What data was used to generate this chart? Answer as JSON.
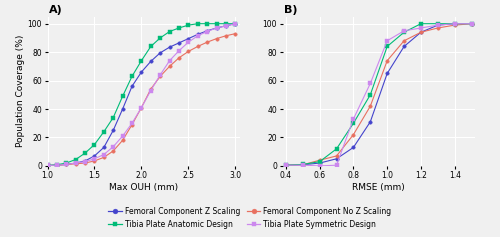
{
  "panel_A": {
    "title": "A)",
    "xlabel": "Max OUH (mm)",
    "ylabel": "Population Coverage (%)",
    "xlim": [
      1.0,
      3.05
    ],
    "ylim": [
      0,
      105
    ],
    "xticks": [
      1.0,
      1.5,
      2.0,
      2.5,
      3.0
    ],
    "yticks": [
      0,
      20,
      40,
      60,
      80,
      100
    ],
    "femoral_z": {
      "x": [
        1.0,
        1.1,
        1.2,
        1.3,
        1.4,
        1.5,
        1.6,
        1.7,
        1.8,
        1.9,
        2.0,
        2.1,
        2.2,
        2.3,
        2.4,
        2.5,
        2.6,
        2.7,
        2.8,
        2.9,
        3.0
      ],
      "y": [
        0.3,
        0.5,
        1.0,
        2.0,
        3.5,
        7.0,
        13.0,
        25.0,
        40.0,
        56.0,
        66.0,
        73.5,
        79.5,
        83.5,
        86.5,
        89.5,
        92.5,
        95.0,
        97.0,
        98.5,
        100.0
      ],
      "color": "#4444cc",
      "marker": "o",
      "label": "Femoral Component Z Scaling"
    },
    "femoral_noz": {
      "x": [
        1.0,
        1.1,
        1.2,
        1.3,
        1.4,
        1.5,
        1.6,
        1.7,
        1.8,
        1.9,
        2.0,
        2.1,
        2.2,
        2.3,
        2.4,
        2.5,
        2.6,
        2.7,
        2.8,
        2.9,
        3.0
      ],
      "y": [
        0.3,
        0.5,
        1.0,
        1.5,
        2.0,
        3.5,
        6.0,
        10.5,
        18.0,
        29.0,
        41.0,
        54.0,
        63.0,
        70.0,
        76.0,
        80.5,
        84.0,
        87.0,
        89.5,
        91.5,
        93.0
      ],
      "color": "#e87060",
      "marker": "o",
      "label": "Femoral Component No Z Scaling"
    },
    "tibia_anatomic": {
      "x": [
        1.0,
        1.1,
        1.2,
        1.3,
        1.4,
        1.5,
        1.6,
        1.7,
        1.8,
        1.9,
        2.0,
        2.1,
        2.2,
        2.3,
        2.4,
        2.5,
        2.6,
        2.7,
        2.8,
        2.9,
        3.0
      ],
      "y": [
        0.3,
        0.8,
        2.0,
        4.5,
        9.0,
        15.0,
        24.0,
        34.0,
        49.0,
        63.0,
        74.0,
        84.0,
        90.0,
        94.5,
        97.0,
        99.0,
        100.0,
        100.0,
        100.0,
        100.0,
        100.0
      ],
      "color": "#00bb77",
      "marker": "s",
      "label": "Tibia Plate Anatomic Design"
    },
    "tibia_symmetric": {
      "x": [
        1.0,
        1.1,
        1.2,
        1.3,
        1.4,
        1.5,
        1.6,
        1.7,
        1.8,
        1.9,
        2.0,
        2.1,
        2.2,
        2.3,
        2.4,
        2.5,
        2.6,
        2.7,
        2.8,
        2.9,
        3.0
      ],
      "y": [
        0.3,
        0.5,
        1.0,
        2.0,
        3.0,
        5.0,
        8.0,
        13.5,
        21.0,
        30.0,
        41.0,
        53.0,
        64.0,
        74.0,
        81.0,
        87.0,
        91.5,
        94.5,
        97.0,
        98.5,
        100.0
      ],
      "color": "#cc88ee",
      "marker": "s",
      "label": "Tibia Plate Symmetric Design"
    }
  },
  "panel_B": {
    "title": "B)",
    "xlabel": "RMSE (mm)",
    "xlim": [
      0.38,
      1.52
    ],
    "ylim": [
      0,
      105
    ],
    "xticks": [
      0.4,
      0.6,
      0.8,
      1.0,
      1.2,
      1.4
    ],
    "yticks": [
      0,
      20,
      40,
      60,
      80,
      100
    ],
    "femoral_z": {
      "x": [
        0.4,
        0.5,
        0.6,
        0.7,
        0.8,
        0.9,
        1.0,
        1.1,
        1.2,
        1.3,
        1.4,
        1.5
      ],
      "y": [
        0.5,
        0.8,
        2.0,
        5.0,
        13.0,
        31.0,
        65.0,
        84.0,
        94.0,
        99.0,
        100.0,
        100.0
      ],
      "color": "#4444cc",
      "marker": "o"
    },
    "femoral_noz": {
      "x": [
        0.4,
        0.5,
        0.6,
        0.7,
        0.8,
        0.9,
        1.0,
        1.1,
        1.2,
        1.3,
        1.4,
        1.5
      ],
      "y": [
        0.5,
        0.8,
        4.0,
        7.0,
        22.0,
        42.0,
        74.0,
        88.0,
        94.0,
        97.0,
        99.0,
        100.0
      ],
      "color": "#e87060",
      "marker": "o"
    },
    "tibia_anatomic": {
      "x": [
        0.4,
        0.5,
        0.6,
        0.7,
        0.8,
        0.9,
        1.0,
        1.1,
        1.2,
        1.3,
        1.4,
        1.5
      ],
      "y": [
        0.5,
        1.0,
        3.0,
        12.0,
        30.0,
        50.0,
        84.0,
        94.0,
        100.0,
        100.0,
        100.0,
        100.0
      ],
      "color": "#00bb77",
      "marker": "s"
    },
    "tibia_symmetric": {
      "x": [
        0.4,
        0.5,
        0.6,
        0.7,
        0.8,
        0.9,
        1.0,
        1.1,
        1.2,
        1.3,
        1.4,
        1.5
      ],
      "y": [
        0.5,
        0.5,
        0.0,
        0.5,
        33.0,
        58.0,
        88.0,
        95.0,
        97.0,
        99.0,
        100.0,
        100.0
      ],
      "color": "#cc88ee",
      "marker": "s"
    }
  },
  "background_color": "#f0f0f0",
  "grid_color": "#ffffff",
  "font_size": 6.5,
  "tick_font_size": 5.5,
  "legend_font_size": 5.5
}
